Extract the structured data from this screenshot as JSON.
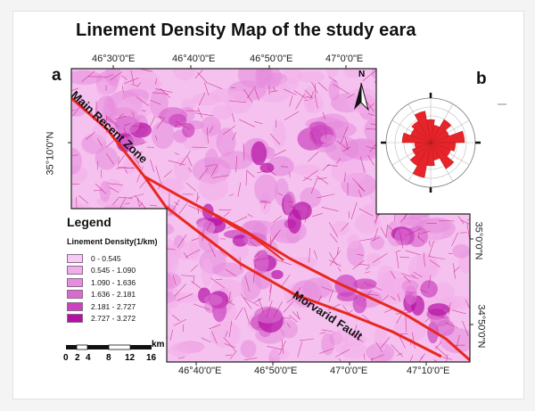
{
  "title": "Linement Density Map of the study eara",
  "panels": {
    "a": "a",
    "b": "b"
  },
  "axes": {
    "top_ticks": [
      "46°30'0\"E",
      "46°40'0\"E",
      "46°50'0\"E",
      "47°0'0\"E"
    ],
    "bottom_ticks": [
      "46°40'0\"E",
      "46°50'0\"E",
      "47°0'0\"E",
      "47°10'0\"E"
    ],
    "left_ticks": [
      "35°10'0\"N"
    ],
    "right_ticks": [
      "35°0'0\"N",
      "34°50'0\"N"
    ]
  },
  "north_arrow": {
    "letter": "N",
    "icon": "north-arrow-icon"
  },
  "map_labels": {
    "main_zone": "Main Recent Zone",
    "fault": "Morvarid Fault"
  },
  "legend": {
    "title": "Legend",
    "subtitle": "Linement Density(1/km)",
    "classes": [
      {
        "label": "0 - 0.545",
        "color": "#f8c9f3"
      },
      {
        "label": "0.545 - 1.090",
        "color": "#f2aeea"
      },
      {
        "label": "1.090 - 1.636",
        "color": "#e68ddd"
      },
      {
        "label": "1.636 - 2.181",
        "color": "#d96bce"
      },
      {
        "label": "2.181 - 2.727",
        "color": "#cb44bd"
      },
      {
        "label": "2.727 - 3.272",
        "color": "#b50fa5"
      }
    ]
  },
  "scale": {
    "unit": "km",
    "labels": [
      "0",
      "2",
      "4",
      "8",
      "12",
      "16"
    ]
  },
  "colors": {
    "fault_line": "#e8281e",
    "lineament": "#c4187d",
    "rose_fill": "#e6242a"
  }
}
